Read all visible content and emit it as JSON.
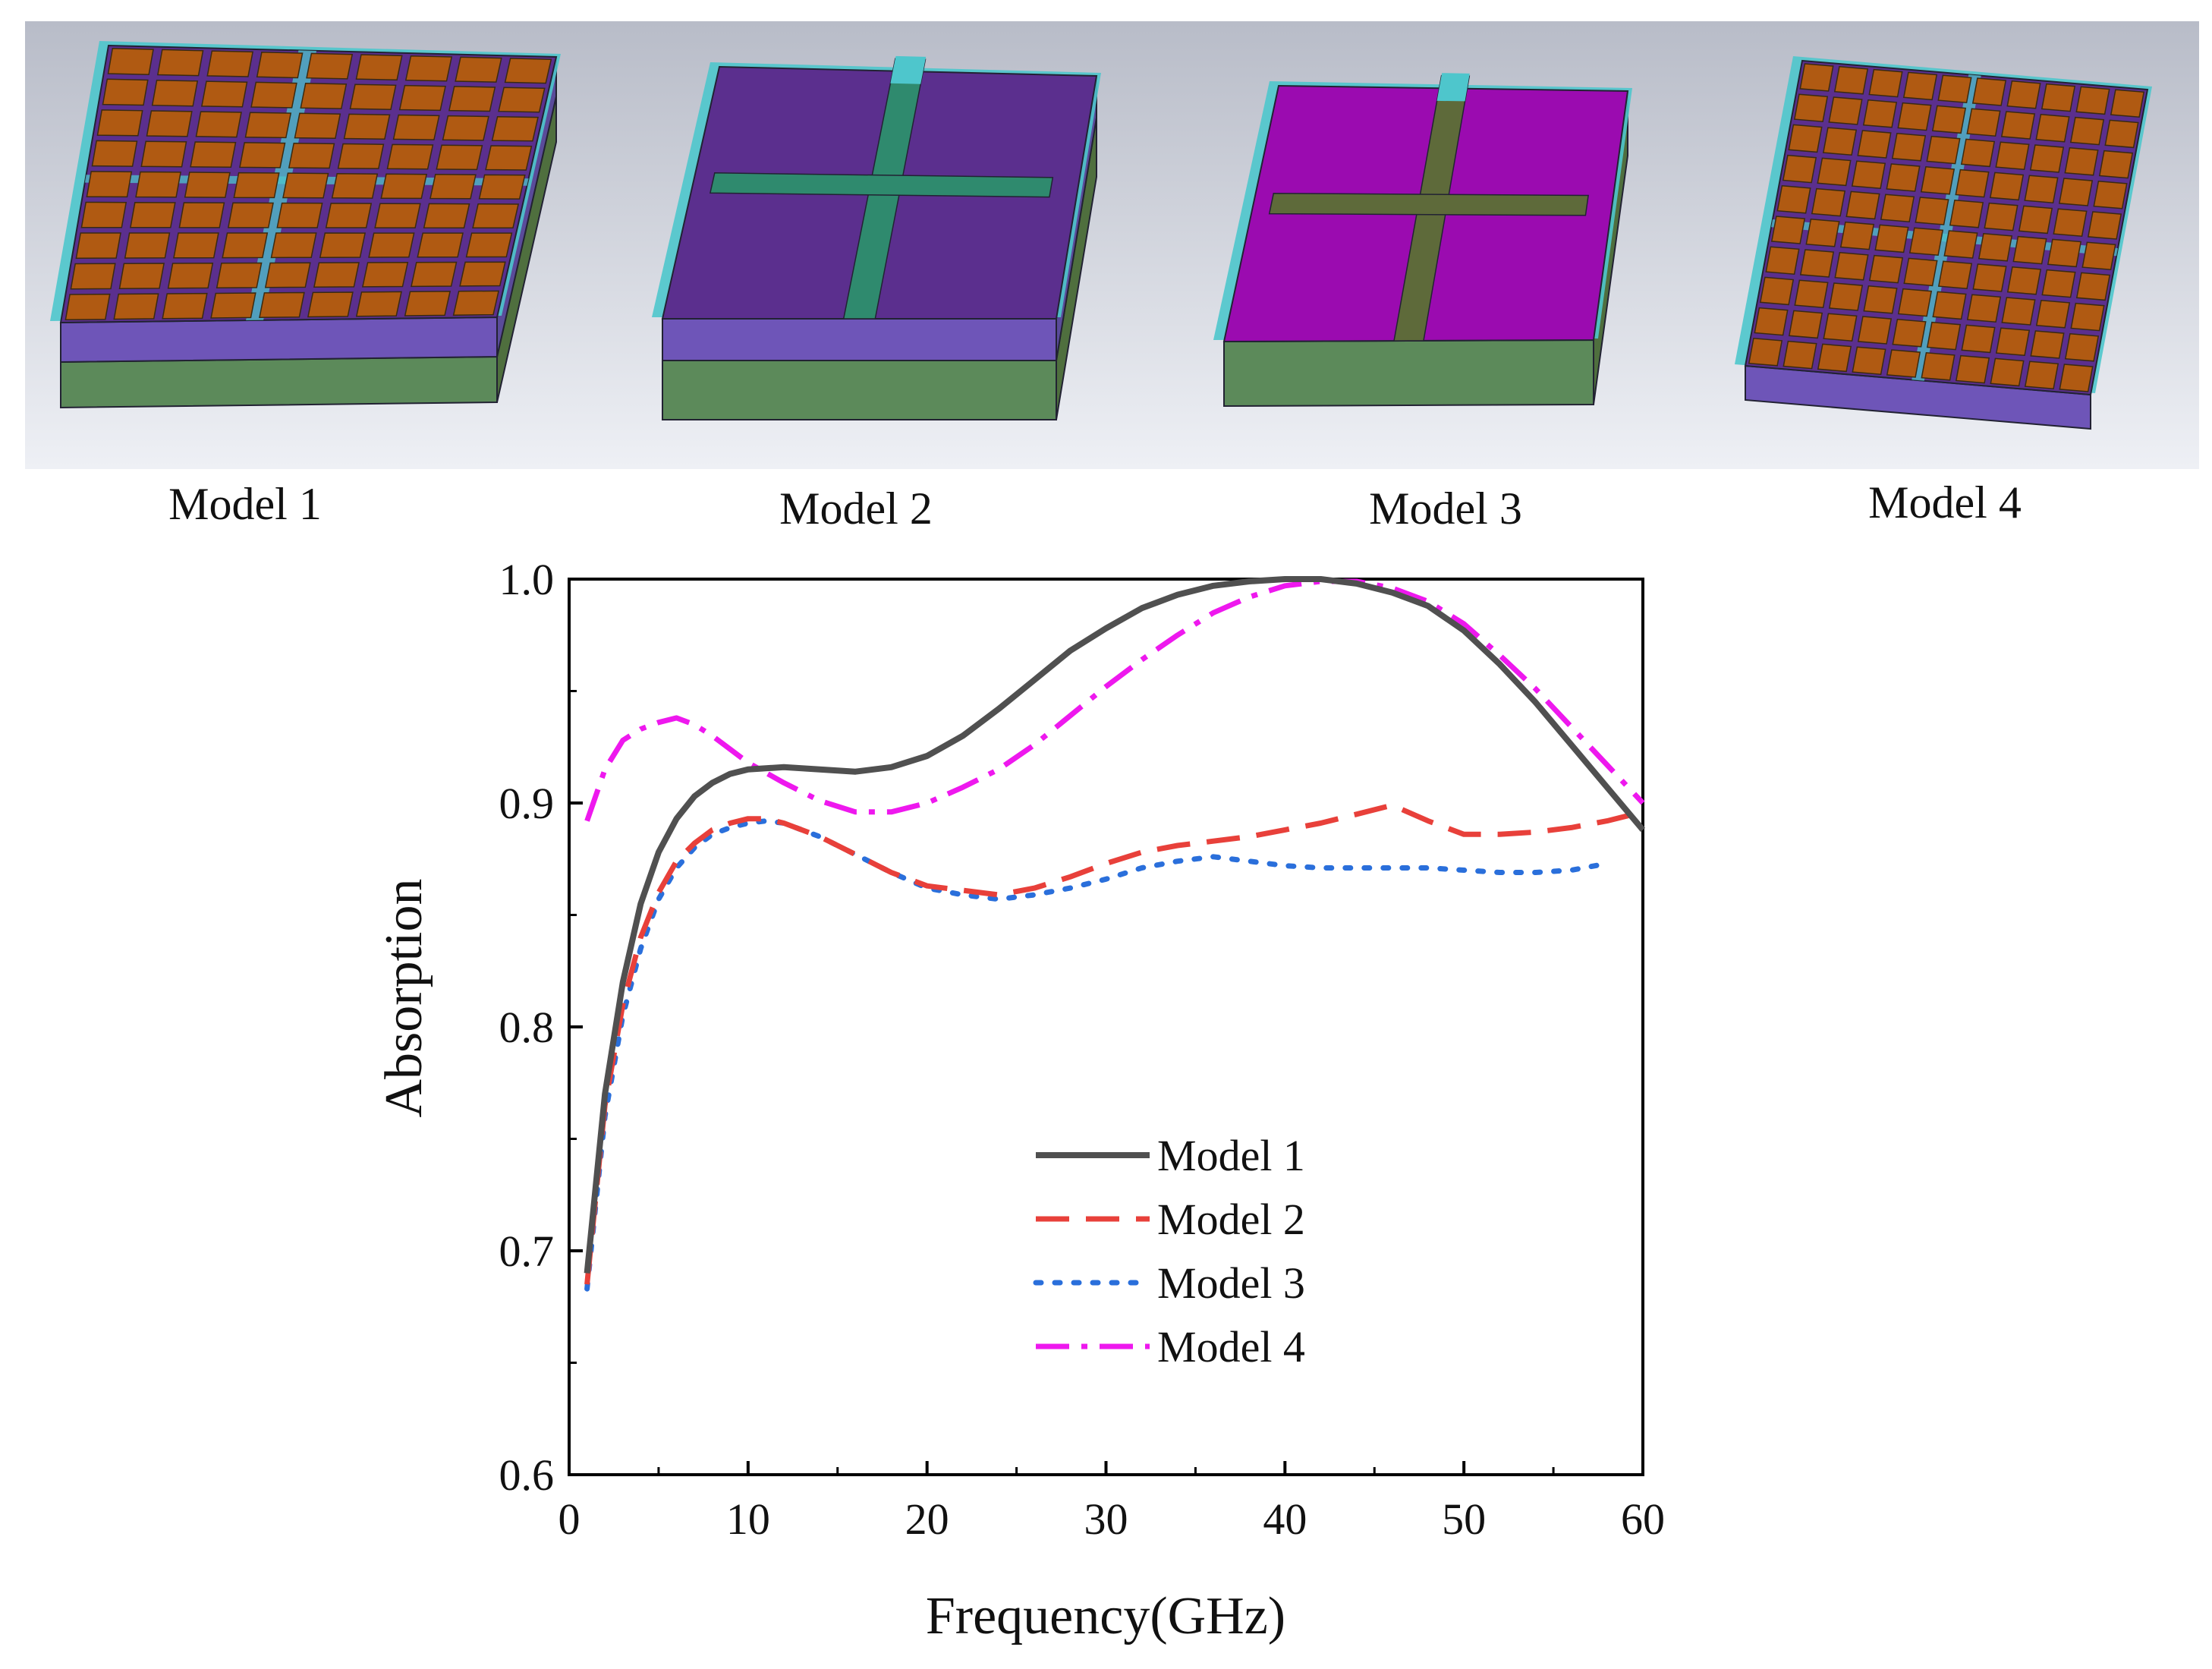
{
  "models": [
    {
      "label": "Model 1",
      "kind": "grid",
      "n": 9
    },
    {
      "label": "Model 2",
      "kind": "cross"
    },
    {
      "label": "Model 3",
      "kind": "cross-magenta"
    },
    {
      "label": "Model 4",
      "kind": "grid",
      "n": 10
    }
  ],
  "colors": {
    "panel_top": "#b9bdc9",
    "panel_bottom": "#eef0f5",
    "cyan": "#4ec6cc",
    "purple": "#5b2f8e",
    "purple_light": "#6e55b8",
    "green": "#5c8a5a",
    "patch": "#b05a12",
    "magenta": "#9b0bb0",
    "cross_dark": "#2f8a6e",
    "cross_olive": "#5e6a3a"
  },
  "chart_data": {
    "type": "line",
    "title": "",
    "xlabel": "Frequency(GHz)",
    "ylabel": "Absorption",
    "xlim": [
      0,
      60
    ],
    "ylim": [
      0.6,
      1.0
    ],
    "xticks": [
      0,
      10,
      20,
      30,
      40,
      50,
      60
    ],
    "yticks": [
      0.6,
      0.7,
      0.8,
      0.9,
      1.0
    ],
    "xtick_labels": [
      "0",
      "10",
      "20",
      "30",
      "40",
      "50",
      "60"
    ],
    "ytick_labels": [
      "0.6",
      "0.7",
      "0.8",
      "0.9",
      "1.0"
    ],
    "legend_position": "center",
    "series": [
      {
        "name": "Model 1",
        "color": "#505050",
        "style": "solid",
        "x": [
          1,
          2,
          3,
          4,
          5,
          6,
          7,
          8,
          9,
          10,
          12,
          14,
          16,
          18,
          20,
          22,
          24,
          26,
          28,
          30,
          32,
          34,
          36,
          38,
          40,
          42,
          44,
          46,
          48,
          50,
          52,
          54,
          56,
          58,
          60
        ],
        "y": [
          0.69,
          0.77,
          0.82,
          0.855,
          0.878,
          0.893,
          0.903,
          0.909,
          0.913,
          0.915,
          0.916,
          0.915,
          0.914,
          0.916,
          0.921,
          0.93,
          0.942,
          0.955,
          0.968,
          0.978,
          0.987,
          0.993,
          0.997,
          0.999,
          1.0,
          1.0,
          0.998,
          0.994,
          0.988,
          0.977,
          0.962,
          0.945,
          0.926,
          0.907,
          0.888
        ]
      },
      {
        "name": "Model 2",
        "color": "#e8403a",
        "style": "dashed",
        "x": [
          1,
          2,
          3,
          4,
          5,
          6,
          7,
          8,
          9,
          10,
          11,
          12,
          14,
          16,
          18,
          20,
          22,
          24,
          26,
          28,
          30,
          32,
          34,
          36,
          38,
          40,
          42,
          44,
          46,
          48,
          50,
          52,
          54,
          56,
          58,
          60
        ],
        "y": [
          0.685,
          0.765,
          0.81,
          0.84,
          0.86,
          0.874,
          0.882,
          0.888,
          0.891,
          0.893,
          0.893,
          0.891,
          0.885,
          0.877,
          0.869,
          0.863,
          0.861,
          0.859,
          0.862,
          0.867,
          0.873,
          0.878,
          0.881,
          0.883,
          0.885,
          0.888,
          0.891,
          0.895,
          0.899,
          0.892,
          0.886,
          0.886,
          0.887,
          0.889,
          0.892,
          0.896
        ]
      },
      {
        "name": "Model 3",
        "color": "#2a6fdb",
        "style": "dotted",
        "x": [
          1,
          2,
          3,
          4,
          5,
          6,
          7,
          8,
          9,
          10,
          11,
          12,
          14,
          16,
          18,
          20,
          22,
          24,
          26,
          28,
          30,
          32,
          34,
          36,
          38,
          40,
          42,
          44,
          46,
          48,
          50,
          52,
          54,
          56,
          58
        ],
        "y": [
          0.683,
          0.76,
          0.805,
          0.835,
          0.857,
          0.871,
          0.88,
          0.886,
          0.889,
          0.891,
          0.892,
          0.891,
          0.885,
          0.877,
          0.869,
          0.862,
          0.859,
          0.857,
          0.859,
          0.862,
          0.866,
          0.871,
          0.874,
          0.876,
          0.874,
          0.872,
          0.871,
          0.871,
          0.871,
          0.871,
          0.87,
          0.869,
          0.869,
          0.87,
          0.873
        ]
      },
      {
        "name": "Model 4",
        "color": "#ee18ee",
        "style": "dashdot",
        "x": [
          1,
          2,
          3,
          4,
          5,
          6,
          7,
          8,
          9,
          10,
          12,
          14,
          16,
          18,
          20,
          22,
          24,
          26,
          28,
          30,
          32,
          34,
          36,
          38,
          40,
          42,
          44,
          46,
          48,
          50,
          52,
          54,
          56,
          58,
          60
        ],
        "y": [
          0.892,
          0.915,
          0.928,
          0.933,
          0.936,
          0.938,
          0.935,
          0.93,
          0.924,
          0.918,
          0.909,
          0.901,
          0.896,
          0.896,
          0.9,
          0.907,
          0.915,
          0.926,
          0.939,
          0.952,
          0.964,
          0.975,
          0.985,
          0.992,
          0.997,
          0.999,
          0.999,
          0.996,
          0.99,
          0.98,
          0.966,
          0.951,
          0.934,
          0.917,
          0.9
        ]
      }
    ]
  }
}
